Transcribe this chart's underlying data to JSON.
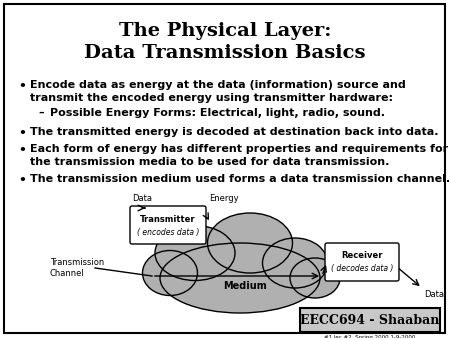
{
  "title_line1": "The Physical Layer:",
  "title_line2": "Data Transmission Basics",
  "bullet1_line1": "Encode data as energy at the data (information) source and",
  "bullet1_line2": "transmit the encoded energy using transmitter hardware:",
  "sub_bullet": "Possible Energy Forms: Electrical, light, radio, sound.",
  "bullet2": "The transmitted energy is decoded at destination back into data.",
  "bullet3_line1": "Each form of energy has different properties and requirements for",
  "bullet3_line2": "the transmission media to be used for data transmission.",
  "bullet4": "The transmission medium used forms a data transmission channel.",
  "bg_color": "#ffffff",
  "border_color": "#000000",
  "title_color": "#000000",
  "text_color": "#000000",
  "cloud_color": "#b0b0b0",
  "footer_text": "EECC694 - Shaaban",
  "footer_subtext": "#1 lec #2  Spring 2000 1-9-2000",
  "footer_bg": "#c8c8c8",
  "transmitter_label_bold": "Transmitter",
  "transmitter_label_italic": "( encodes data )",
  "receiver_label_bold": "Receiver",
  "receiver_label_italic": "( decodes data )",
  "medium_label": "Medium",
  "data_in": "Data",
  "data_out": "Data",
  "energy_label": "Energy",
  "tc_label": "Transmission\nChannel"
}
